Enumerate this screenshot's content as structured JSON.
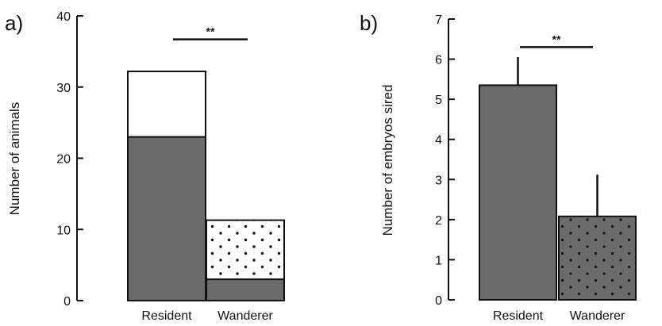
{
  "chart_data": [
    {
      "type": "bar",
      "panel_label": "a)",
      "stacked": true,
      "categories": [
        "Resident",
        "Wanderer"
      ],
      "series": [
        {
          "style": "dark-solid",
          "values": [
            23,
            3
          ]
        },
        {
          "style": "white-or-dotted",
          "values": [
            9.2,
            8.3
          ]
        }
      ],
      "totals": [
        32.2,
        11.3
      ],
      "segment_fill": {
        "Resident": [
          "dark",
          "white"
        ],
        "Wanderer": [
          "dark",
          "dotted"
        ]
      },
      "xlabel": "",
      "ylabel": "Number of animals",
      "ylim": [
        0,
        40
      ],
      "yticks": [
        0,
        10,
        20,
        30,
        40
      ],
      "significance": {
        "label": "**",
        "between": [
          "Resident",
          "Wanderer"
        ],
        "y": 36.7
      },
      "grid": false
    },
    {
      "type": "bar",
      "panel_label": "b)",
      "categories": [
        "Resident",
        "Wanderer"
      ],
      "values": [
        5.35,
        2.08
      ],
      "error_upper": [
        6.05,
        3.12
      ],
      "bar_fill": [
        "dark",
        "dark-dotted"
      ],
      "xlabel": "",
      "ylabel": "Number of embryos sired",
      "ylim": [
        0,
        7
      ],
      "yticks": [
        0,
        1,
        2,
        3,
        4,
        5,
        6,
        7
      ],
      "significance": {
        "label": "**",
        "between": [
          "Resident",
          "Wanderer"
        ],
        "y": 6.3
      },
      "grid": false
    }
  ],
  "colors": {
    "bar_dark": "#6b6b6b",
    "bar_light": "#ffffff",
    "dots": "#111111",
    "axis": "#111111"
  }
}
